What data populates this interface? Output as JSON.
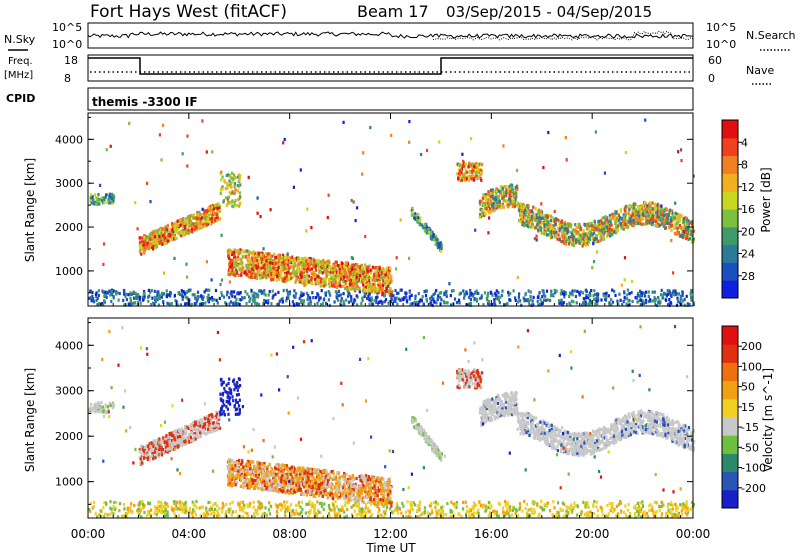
{
  "header": {
    "station": "Fort Hays West (fitACF)",
    "beam": "Beam 17",
    "date_range": "03/Sep/2015 - 04/Sep/2015"
  },
  "strips": {
    "nsky_label": "N.Sky",
    "nsky_ticks": [
      "10^5",
      "10^0"
    ],
    "nsearch_label": "N.Search",
    "nsearch_ticks": [
      "10^5",
      "10^0"
    ],
    "freq_label": "Freq.",
    "freq_unit": "[MHz]",
    "freq_ticks": [
      "18",
      "8"
    ],
    "nave_label": "Nave",
    "nave_ticks": [
      "60",
      "0"
    ],
    "cpid_label": "CPID",
    "cpid_text": "themis -3300 IF"
  },
  "chart_data": [
    {
      "type": "heatmap",
      "name": "power",
      "ylabel": "Slant Range [km]",
      "yticks": [
        1000,
        2000,
        3000,
        4000
      ],
      "ylim": [
        200,
        4600
      ],
      "colorbar_label": "Power [dB]",
      "colorbar_ticks": [
        4,
        8,
        12,
        16,
        20,
        24,
        28
      ],
      "colors": [
        "#1020e0",
        "#1a4fc0",
        "#2a7a9a",
        "#3f9a6a",
        "#7cc040",
        "#c8d820",
        "#f0b020",
        "#f08020",
        "#f04020",
        "#e01010"
      ]
    },
    {
      "type": "heatmap",
      "name": "velocity",
      "ylabel": "Slant Range [km]",
      "yticks": [
        1000,
        2000,
        3000,
        4000
      ],
      "ylim": [
        200,
        4600
      ],
      "colorbar_label": "Velocity [m s^-1]",
      "colorbar_ticks": [
        200,
        100,
        50,
        15,
        -15,
        -50,
        -100,
        -200
      ],
      "colors": [
        "#1820c8",
        "#2a55b8",
        "#2a8a6a",
        "#6fc040",
        "#c8c8c8",
        "#f0d020",
        "#f0a010",
        "#f07010",
        "#e03010",
        "#e01010"
      ]
    }
  ],
  "x_axis": {
    "label": "Time UT",
    "ticks": [
      "00:00",
      "04:00",
      "08:00",
      "12:00",
      "16:00",
      "20:00",
      "00:00"
    ]
  }
}
